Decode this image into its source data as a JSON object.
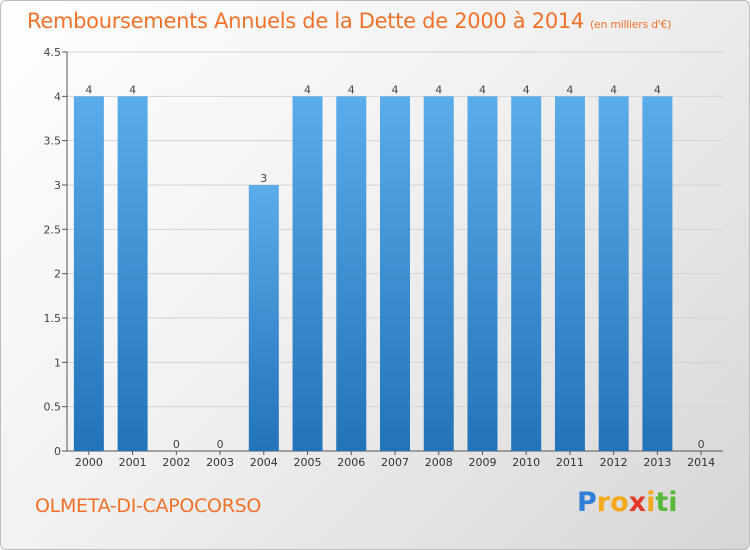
{
  "title": "Remboursements Annuels de la Dette de 2000 à 2014",
  "subtitle": "(en milliers d'€)",
  "commune": "OLMETA-DI-CAPOCORSO",
  "logo": {
    "p": "P",
    "r": "r",
    "o": "o",
    "x": "x",
    "i1": "i",
    "t": "t",
    "i2": "i"
  },
  "colors": {
    "bar_top": "#5aacea",
    "bar_bottom": "#2273b8",
    "accent": "#f0722a"
  },
  "chart_data": {
    "type": "bar",
    "title": "Remboursements Annuels de la Dette de 2000 à 2014",
    "subtitle": "(en milliers d'€)",
    "xlabel": "",
    "ylabel": "",
    "categories": [
      "2000",
      "2001",
      "2002",
      "2003",
      "2004",
      "2005",
      "2006",
      "2007",
      "2008",
      "2009",
      "2010",
      "2011",
      "2012",
      "2013",
      "2014"
    ],
    "values": [
      4,
      4,
      0,
      0,
      3,
      4,
      4,
      4,
      4,
      4,
      4,
      4,
      4,
      4,
      0
    ],
    "data_labels": [
      "4",
      "4",
      "0",
      "0",
      "3",
      "4",
      "4",
      "4",
      "4",
      "4",
      "4",
      "4",
      "4",
      "4",
      "0"
    ],
    "ylim": [
      0,
      4.5
    ],
    "yticks": [
      0,
      0.5,
      1,
      1.5,
      2,
      2.5,
      3,
      3.5,
      4,
      4.5
    ],
    "ytick_labels": [
      "0",
      "0.5",
      "1",
      "1.5",
      "2",
      "2.5",
      "3",
      "3.5",
      "4",
      "4.5"
    ],
    "grid": true,
    "legend": "none"
  }
}
